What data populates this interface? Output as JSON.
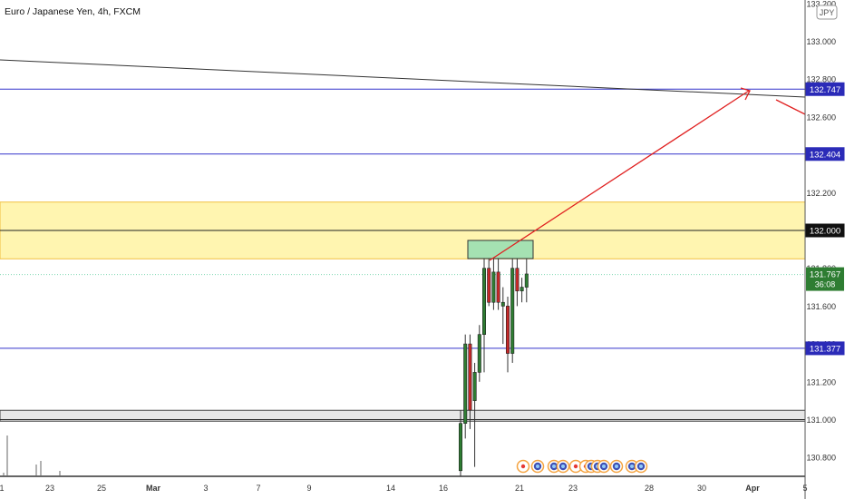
{
  "header": {
    "symbol_title": "Euro / Japanese Yen, 4h, FXCM",
    "currency_badge": "JPY"
  },
  "chart_data": {
    "type": "candlestick",
    "title": "Euro / Japanese Yen, 4h, FXCM",
    "price_axis": {
      "labels": [
        "133.200",
        "133.000",
        "132.800",
        "132.600",
        "132.400",
        "132.200",
        "132.000",
        "131.800",
        "131.600",
        "131.400",
        "131.200",
        "131.000",
        "130.800"
      ],
      "ylim": [
        130.7,
        133.2
      ]
    },
    "time_axis": {
      "labels": [
        "1",
        "23",
        "25",
        "Mar",
        "3",
        "7",
        "9",
        "14",
        "16",
        "21",
        "23",
        "28",
        "30",
        "Apr",
        "5"
      ]
    },
    "horizontal_levels": [
      {
        "price": 132.747,
        "label": "132.747",
        "color": "#3333cc",
        "style": "line"
      },
      {
        "price": 132.404,
        "label": "132.404",
        "color": "#3333cc",
        "style": "line"
      },
      {
        "price": 132.0,
        "label": "132.000",
        "color": "#222222",
        "style": "line"
      },
      {
        "price": 131.377,
        "label": "131.377",
        "color": "#3333cc",
        "style": "line"
      },
      {
        "price": 131.0,
        "label": "",
        "color": "#222222",
        "style": "line"
      }
    ],
    "zones": [
      {
        "from": 131.85,
        "to": 132.15,
        "color": "#fff5b0"
      },
      {
        "from": 130.97,
        "to": 131.03,
        "color": "#e6e6e6"
      }
    ],
    "current_price": {
      "label": "131.767",
      "countdown": "36:08",
      "color": "#2e7d32"
    },
    "candles": [
      {
        "o": 130.73,
        "h": 131.05,
        "l": 130.7,
        "c": 130.98,
        "dir": "up"
      },
      {
        "o": 130.98,
        "h": 131.45,
        "l": 130.9,
        "c": 131.4,
        "dir": "up"
      },
      {
        "o": 131.4,
        "h": 131.45,
        "l": 130.95,
        "c": 131.05,
        "dir": "down"
      },
      {
        "o": 131.1,
        "h": 131.3,
        "l": 130.75,
        "c": 131.25,
        "dir": "up"
      },
      {
        "o": 131.25,
        "h": 131.5,
        "l": 131.2,
        "c": 131.45,
        "dir": "up"
      },
      {
        "o": 131.45,
        "h": 131.85,
        "l": 131.25,
        "c": 131.8,
        "dir": "up"
      },
      {
        "o": 131.8,
        "h": 131.85,
        "l": 131.6,
        "c": 131.62,
        "dir": "down"
      },
      {
        "o": 131.62,
        "h": 131.85,
        "l": 131.58,
        "c": 131.78,
        "dir": "up"
      },
      {
        "o": 131.78,
        "h": 131.85,
        "l": 131.58,
        "c": 131.62,
        "dir": "down"
      },
      {
        "o": 131.62,
        "h": 131.7,
        "l": 131.4,
        "c": 131.6,
        "dir": "up"
      },
      {
        "o": 131.6,
        "h": 131.65,
        "l": 131.25,
        "c": 131.35,
        "dir": "down"
      },
      {
        "o": 131.35,
        "h": 131.85,
        "l": 131.3,
        "c": 131.8,
        "dir": "up"
      },
      {
        "o": 131.8,
        "h": 131.85,
        "l": 131.6,
        "c": 131.68,
        "dir": "down"
      },
      {
        "o": 131.68,
        "h": 131.75,
        "l": 131.62,
        "c": 131.7,
        "dir": "up"
      },
      {
        "o": 131.7,
        "h": 131.85,
        "l": 131.62,
        "c": 131.77,
        "dir": "up"
      }
    ],
    "colors": {
      "up": "#2e7d32",
      "down": "#c62828",
      "level": "#3333cc",
      "projection": "#e02020",
      "trendline": "#333333",
      "box": "#7fd8b3"
    }
  }
}
